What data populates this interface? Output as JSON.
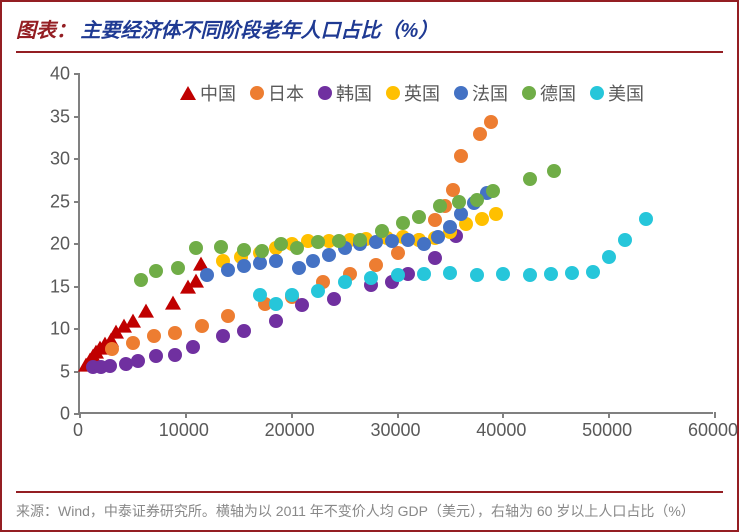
{
  "title_label": "图表：",
  "title_text": "主要经济体不同阶段老年人口占比（%）",
  "footer_text": "来源：Wind，中泰证券研究所。横轴为以 2011 年不变价人均 GDP（美元），右轴为 60 岁以上人口占比（%）",
  "chart": {
    "type": "scatter",
    "xlim": [
      0,
      60000
    ],
    "ylim": [
      0,
      40
    ],
    "xticks": [
      0,
      10000,
      20000,
      30000,
      40000,
      50000,
      60000
    ],
    "yticks": [
      0,
      5,
      10,
      15,
      20,
      25,
      30,
      35,
      40
    ],
    "axis_color": "#808080",
    "tick_font_size": 18,
    "tick_color": "#595959",
    "marker_size": 14,
    "background_color": "#ffffff",
    "series": [
      {
        "name": "中国",
        "label": "中国",
        "marker": "triangle",
        "color": "#c00000",
        "data": [
          [
            600,
            5.7
          ],
          [
            900,
            6.2
          ],
          [
            1200,
            6.7
          ],
          [
            1500,
            7.2
          ],
          [
            1900,
            7.6
          ],
          [
            2400,
            8.1
          ],
          [
            2900,
            8.6
          ],
          [
            3400,
            9.5
          ],
          [
            4200,
            10.2
          ],
          [
            5000,
            10.8
          ],
          [
            6200,
            12.0
          ],
          [
            8800,
            13.0
          ],
          [
            10200,
            14.8
          ],
          [
            11000,
            15.5
          ],
          [
            11400,
            17.5
          ]
        ]
      },
      {
        "name": "日本",
        "label": "日本",
        "marker": "circle",
        "color": "#ed7d31",
        "data": [
          [
            3000,
            7.6
          ],
          [
            5000,
            8.4
          ],
          [
            7000,
            9.2
          ],
          [
            9000,
            9.5
          ],
          [
            11500,
            10.3
          ],
          [
            14000,
            11.5
          ],
          [
            17500,
            13.0
          ],
          [
            20000,
            13.8
          ],
          [
            23000,
            15.5
          ],
          [
            25500,
            16.5
          ],
          [
            28000,
            17.5
          ],
          [
            30000,
            19.0
          ],
          [
            32000,
            20.5
          ],
          [
            33500,
            22.8
          ],
          [
            34500,
            24.5
          ],
          [
            35200,
            26.3
          ],
          [
            36000,
            30.3
          ],
          [
            37800,
            32.9
          ],
          [
            38800,
            34.3
          ]
        ]
      },
      {
        "name": "韩国",
        "label": "韩国",
        "marker": "circle",
        "color": "#7030a0",
        "data": [
          [
            1200,
            5.5
          ],
          [
            2000,
            5.5
          ],
          [
            2800,
            5.7
          ],
          [
            4300,
            5.9
          ],
          [
            5500,
            6.2
          ],
          [
            7200,
            6.8
          ],
          [
            9000,
            7.0
          ],
          [
            10700,
            7.9
          ],
          [
            13500,
            9.2
          ],
          [
            15500,
            9.8
          ],
          [
            18500,
            11.0
          ],
          [
            21000,
            12.8
          ],
          [
            24000,
            13.5
          ],
          [
            27500,
            15.2
          ],
          [
            29500,
            15.5
          ],
          [
            31000,
            16.5
          ],
          [
            33500,
            18.3
          ],
          [
            35500,
            20.9
          ]
        ]
      },
      {
        "name": "英国",
        "label": "英国",
        "marker": "circle",
        "color": "#ffc000",
        "data": [
          [
            13500,
            18.0
          ],
          [
            15200,
            18.5
          ],
          [
            17000,
            19.0
          ],
          [
            18500,
            19.5
          ],
          [
            20000,
            20.0
          ],
          [
            21500,
            20.3
          ],
          [
            23500,
            20.4
          ],
          [
            25500,
            20.5
          ],
          [
            27000,
            20.6
          ],
          [
            29000,
            20.7
          ],
          [
            30500,
            20.8
          ],
          [
            32000,
            20.5
          ],
          [
            33500,
            20.7
          ],
          [
            35000,
            21.4
          ],
          [
            36500,
            22.3
          ],
          [
            38000,
            22.9
          ],
          [
            39300,
            23.5
          ]
        ]
      },
      {
        "name": "法国",
        "label": "法国",
        "marker": "circle",
        "color": "#4472c4",
        "data": [
          [
            12000,
            16.3
          ],
          [
            14000,
            17.0
          ],
          [
            15500,
            17.4
          ],
          [
            17000,
            17.8
          ],
          [
            18500,
            18.0
          ],
          [
            20700,
            17.2
          ],
          [
            22000,
            18.0
          ],
          [
            23500,
            18.7
          ],
          [
            25000,
            19.5
          ],
          [
            26500,
            20.0
          ],
          [
            28000,
            20.2
          ],
          [
            29500,
            20.3
          ],
          [
            31000,
            20.5
          ],
          [
            32500,
            20.0
          ],
          [
            33800,
            20.8
          ],
          [
            35000,
            22.0
          ],
          [
            36000,
            23.5
          ],
          [
            37200,
            24.8
          ],
          [
            38500,
            26.0
          ]
        ]
      },
      {
        "name": "德国",
        "label": "德国",
        "marker": "circle",
        "color": "#70ad47",
        "data": [
          [
            5800,
            15.8
          ],
          [
            7200,
            16.8
          ],
          [
            9300,
            17.2
          ],
          [
            11000,
            19.5
          ],
          [
            13300,
            19.7
          ],
          [
            15500,
            19.3
          ],
          [
            17200,
            19.2
          ],
          [
            19000,
            20.0
          ],
          [
            20500,
            19.5
          ],
          [
            22500,
            20.2
          ],
          [
            24500,
            20.3
          ],
          [
            26500,
            20.5
          ],
          [
            28500,
            21.5
          ],
          [
            30500,
            22.5
          ],
          [
            32000,
            23.2
          ],
          [
            34000,
            24.5
          ],
          [
            35800,
            25.0
          ],
          [
            37500,
            25.2
          ],
          [
            39000,
            26.2
          ],
          [
            42500,
            27.6
          ],
          [
            44800,
            28.6
          ]
        ]
      },
      {
        "name": "美国",
        "label": "美国",
        "marker": "circle",
        "color": "#26c6da",
        "data": [
          [
            17000,
            14.0
          ],
          [
            18500,
            13.0
          ],
          [
            20000,
            14.0
          ],
          [
            22500,
            14.5
          ],
          [
            25000,
            15.5
          ],
          [
            27500,
            16.0
          ],
          [
            30000,
            16.3
          ],
          [
            32500,
            16.5
          ],
          [
            35000,
            16.6
          ],
          [
            37500,
            16.4
          ],
          [
            40000,
            16.5
          ],
          [
            42500,
            16.3
          ],
          [
            44500,
            16.5
          ],
          [
            46500,
            16.6
          ],
          [
            48500,
            16.7
          ],
          [
            50000,
            18.5
          ],
          [
            51500,
            20.5
          ],
          [
            53500,
            23.0
          ]
        ]
      }
    ],
    "legend": {
      "position": "top",
      "font_size": 18
    }
  },
  "colors": {
    "frame_border": "#941e23",
    "title_label": "#941e23",
    "title_text": "#1f3a93",
    "footer_text": "#888888",
    "background": "#ffffff"
  }
}
